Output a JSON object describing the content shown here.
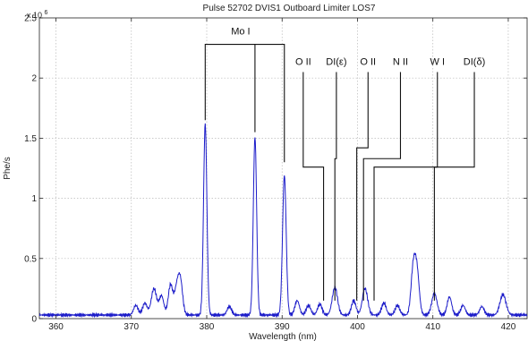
{
  "chart_data": {
    "type": "line",
    "title": "Pulse 52702 DVIS1 Outboard Limiter LOS7",
    "xlabel": "Wavelength (nm)",
    "ylabel": "Phe/s",
    "y_exponent_label": "x 10",
    "y_exponent_power": "6",
    "xlim": [
      357.8,
      422.5
    ],
    "ylim": [
      0,
      2.5
    ],
    "x_ticks": [
      360,
      370,
      380,
      390,
      400,
      410,
      420
    ],
    "y_ticks": [
      0,
      0.5,
      1,
      1.5,
      2,
      2.5
    ],
    "grid": true,
    "baseline": 0.03,
    "peaks": [
      {
        "x": 370.6,
        "y": 0.08,
        "w": 0.3
      },
      {
        "x": 371.8,
        "y": 0.1,
        "w": 0.3
      },
      {
        "x": 373.0,
        "y": 0.22,
        "w": 0.35
      },
      {
        "x": 374.0,
        "y": 0.16,
        "w": 0.3
      },
      {
        "x": 375.2,
        "y": 0.25,
        "w": 0.3
      },
      {
        "x": 376.0,
        "y": 0.2,
        "w": 0.3
      },
      {
        "x": 376.5,
        "y": 0.28,
        "w": 0.3
      },
      {
        "x": 379.8,
        "y": 1.59,
        "w": 0.22
      },
      {
        "x": 383.0,
        "y": 0.07,
        "w": 0.3
      },
      {
        "x": 386.4,
        "y": 1.48,
        "w": 0.22
      },
      {
        "x": 390.3,
        "y": 1.16,
        "w": 0.24
      },
      {
        "x": 392.0,
        "y": 0.12,
        "w": 0.3
      },
      {
        "x": 393.5,
        "y": 0.08,
        "w": 0.3
      },
      {
        "x": 395.0,
        "y": 0.09,
        "w": 0.3
      },
      {
        "x": 397.0,
        "y": 0.23,
        "w": 0.35
      },
      {
        "x": 399.5,
        "y": 0.12,
        "w": 0.3
      },
      {
        "x": 401.0,
        "y": 0.22,
        "w": 0.35
      },
      {
        "x": 403.5,
        "y": 0.1,
        "w": 0.3
      },
      {
        "x": 405.3,
        "y": 0.08,
        "w": 0.3
      },
      {
        "x": 407.4,
        "y": 0.38,
        "w": 0.3
      },
      {
        "x": 407.9,
        "y": 0.34,
        "w": 0.3
      },
      {
        "x": 410.2,
        "y": 0.18,
        "w": 0.35
      },
      {
        "x": 412.2,
        "y": 0.15,
        "w": 0.3
      },
      {
        "x": 414.0,
        "y": 0.08,
        "w": 0.3
      },
      {
        "x": 416.5,
        "y": 0.07,
        "w": 0.3
      },
      {
        "x": 419.3,
        "y": 0.17,
        "w": 0.4
      }
    ],
    "annotations": [
      {
        "label": "Mo I",
        "targets": [
          379.8,
          386.4,
          390.3
        ],
        "bracket_y": 2.28,
        "label_x": 384.5
      },
      {
        "label": "O II",
        "target": 395.5,
        "label_x": 392.8,
        "elbow_y": 1.26
      },
      {
        "label": "DI(ε)",
        "target": 397.0,
        "label_x": 397.2,
        "elbow_y": 1.33
      },
      {
        "label": "O II",
        "target": 399.9,
        "label_x": 401.4,
        "elbow_y": 1.42
      },
      {
        "label": "N II",
        "target": 400.8,
        "label_x": 405.7,
        "elbow_y": 1.33
      },
      {
        "label": "W I",
        "target": 402.2,
        "label_x": 410.6,
        "elbow_y": 1.26
      },
      {
        "label": "DI(δ)",
        "target": 410.2,
        "label_x": 415.5,
        "elbow_y": 1.26
      }
    ]
  }
}
